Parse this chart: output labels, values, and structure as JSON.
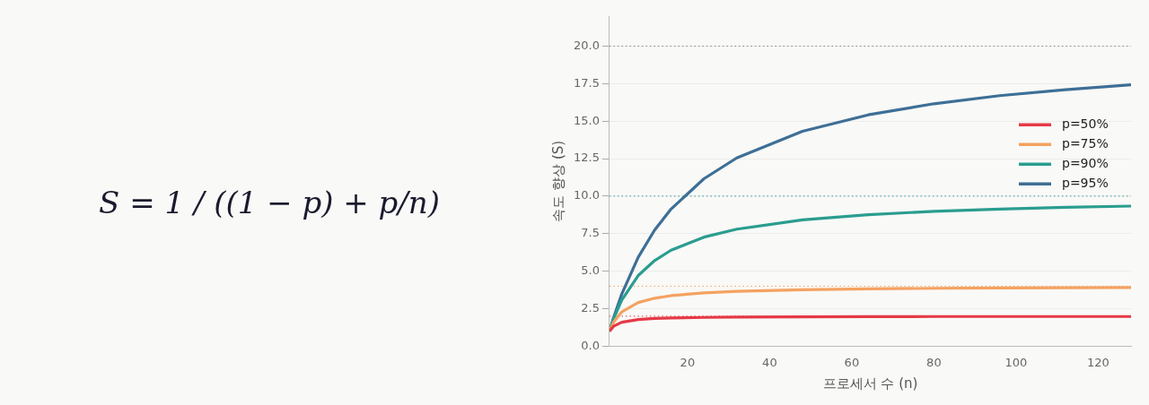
{
  "chart_data": {
    "type": "line",
    "annotations": [
      "S = 1 / ((1 − p) + p/n)"
    ],
    "xlabel": "프로세서 수 (n)",
    "ylabel": "속도 향상 (S)",
    "x": [
      1,
      2,
      4,
      8,
      12,
      16,
      24,
      32,
      48,
      64,
      80,
      96,
      112,
      128
    ],
    "series": [
      {
        "name": "p=50%",
        "color": "#e63946",
        "values": [
          1,
          1.33,
          1.6,
          1.78,
          1.85,
          1.88,
          1.92,
          1.94,
          1.96,
          1.97,
          1.98,
          1.98,
          1.98,
          1.98
        ]
      },
      {
        "name": "p=75%",
        "color": "#f4a261",
        "values": [
          1,
          1.6,
          2.29,
          2.91,
          3.2,
          3.37,
          3.56,
          3.66,
          3.76,
          3.82,
          3.86,
          3.88,
          3.9,
          3.91
        ]
      },
      {
        "name": "p=90%",
        "color": "#2a9d8f",
        "values": [
          1,
          1.82,
          3.08,
          4.71,
          5.71,
          6.4,
          7.27,
          7.8,
          8.42,
          8.77,
          8.99,
          9.14,
          9.26,
          9.34
        ]
      },
      {
        "name": "p=95%",
        "color": "#3d6f96",
        "values": [
          1,
          1.9,
          3.48,
          5.93,
          7.74,
          9.14,
          11.16,
          12.55,
          14.33,
          15.42,
          16.16,
          16.7,
          17.1,
          17.42
        ]
      }
    ],
    "ref_lines": [
      {
        "axis": "y",
        "value": 2,
        "color": "#e63946",
        "line_style": "dotted"
      },
      {
        "axis": "y",
        "value": 4,
        "color": "#f4a261",
        "line_style": "dotted"
      },
      {
        "axis": "y",
        "value": 10,
        "color": "#2a9d8f",
        "line_style": "dotted"
      },
      {
        "axis": "y",
        "value": 20,
        "color": "#888888",
        "line_style": "dotted"
      }
    ],
    "xlim": [
      1,
      128
    ],
    "xticks": [
      20,
      40,
      60,
      80,
      100,
      120
    ],
    "ylim": [
      0,
      22
    ],
    "yticks": [
      {
        "value": 0,
        "label": "0.0"
      },
      {
        "value": 2.5,
        "label": "2.5"
      },
      {
        "value": 5,
        "label": "5.0"
      },
      {
        "value": 7.5,
        "label": "7.5"
      },
      {
        "value": 10,
        "label": "10.0"
      },
      {
        "value": 12.5,
        "label": "12.5"
      },
      {
        "value": 15,
        "label": "15.0"
      },
      {
        "value": 17.5,
        "label": "17.5"
      },
      {
        "value": 20,
        "label": "20.0"
      }
    ],
    "grid": "y",
    "legend": "right",
    "marker": "none",
    "line_style": "solid"
  }
}
